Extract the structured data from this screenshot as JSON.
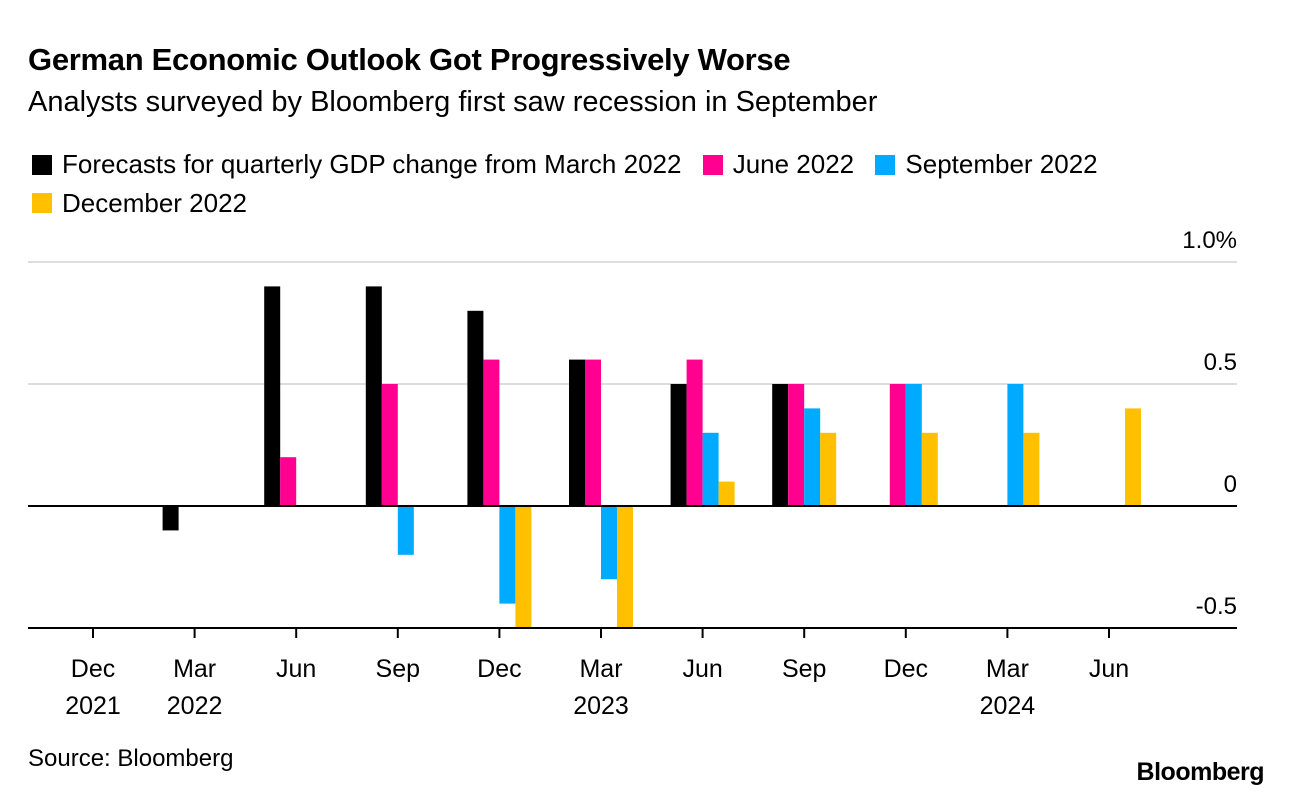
{
  "header": {
    "title": "German Economic Outlook Got Progressively Worse",
    "subtitle": "Analysts surveyed by Bloomberg first saw recession in September"
  },
  "legend": [
    {
      "label": "Forecasts for quarterly GDP change from March 2022",
      "color": "#000000"
    },
    {
      "label": "June 2022",
      "color": "#FF0090"
    },
    {
      "label": "September 2022",
      "color": "#00AAFF"
    },
    {
      "label": "December 2022",
      "color": "#FFC000"
    }
  ],
  "footer": {
    "source": "Source: Bloomberg",
    "brand": "Bloomberg"
  },
  "chart_data": {
    "type": "bar",
    "title": "German Economic Outlook Got Progressively Worse",
    "subtitle": "Analysts surveyed by Bloomberg first saw recession in September",
    "xlabel": "",
    "ylabel": "",
    "categories": [
      "Dec 2021",
      "Mar 2022",
      "Jun 2022",
      "Sep 2022",
      "Dec 2022",
      "Mar 2023",
      "Jun 2023",
      "Sep 2023",
      "Dec 2023",
      "Mar 2024",
      "Jun 2024"
    ],
    "x_tick_labels": [
      {
        "line1": "Dec",
        "line2": "2021"
      },
      {
        "line1": "Mar",
        "line2": "2022"
      },
      {
        "line1": "Jun",
        "line2": ""
      },
      {
        "line1": "Sep",
        "line2": ""
      },
      {
        "line1": "Dec",
        "line2": ""
      },
      {
        "line1": "Mar",
        "line2": "2023"
      },
      {
        "line1": "Jun",
        "line2": ""
      },
      {
        "line1": "Sep",
        "line2": ""
      },
      {
        "line1": "Dec",
        "line2": ""
      },
      {
        "line1": "Mar",
        "line2": "2024"
      },
      {
        "line1": "Jun",
        "line2": ""
      }
    ],
    "series": [
      {
        "name": "Forecasts for quarterly GDP change from March 2022",
        "color": "#000000",
        "values": [
          null,
          -0.1,
          0.9,
          0.9,
          0.8,
          0.6,
          0.5,
          0.5,
          null,
          null,
          null
        ]
      },
      {
        "name": "June 2022",
        "color": "#FF0090",
        "values": [
          null,
          null,
          0.2,
          0.5,
          0.6,
          0.6,
          0.6,
          0.5,
          0.5,
          null,
          null
        ]
      },
      {
        "name": "September 2022",
        "color": "#00AAFF",
        "values": [
          null,
          null,
          null,
          -0.2,
          -0.4,
          -0.3,
          0.3,
          0.4,
          0.5,
          0.5,
          null
        ]
      },
      {
        "name": "December 2022",
        "color": "#FFC000",
        "values": [
          null,
          null,
          null,
          null,
          -0.5,
          -0.5,
          0.1,
          0.3,
          0.3,
          0.3,
          0.4
        ]
      }
    ],
    "y_ticks": [
      {
        "value": 1.0,
        "label": "1.0%"
      },
      {
        "value": 0.5,
        "label": "0.5"
      },
      {
        "value": 0,
        "label": "0"
      },
      {
        "value": -0.5,
        "label": "-0.5"
      }
    ],
    "ylim": [
      -0.5,
      1.0
    ],
    "unit": "%",
    "grid": true,
    "y_axis_position": "right",
    "legend_position": "top-left"
  }
}
